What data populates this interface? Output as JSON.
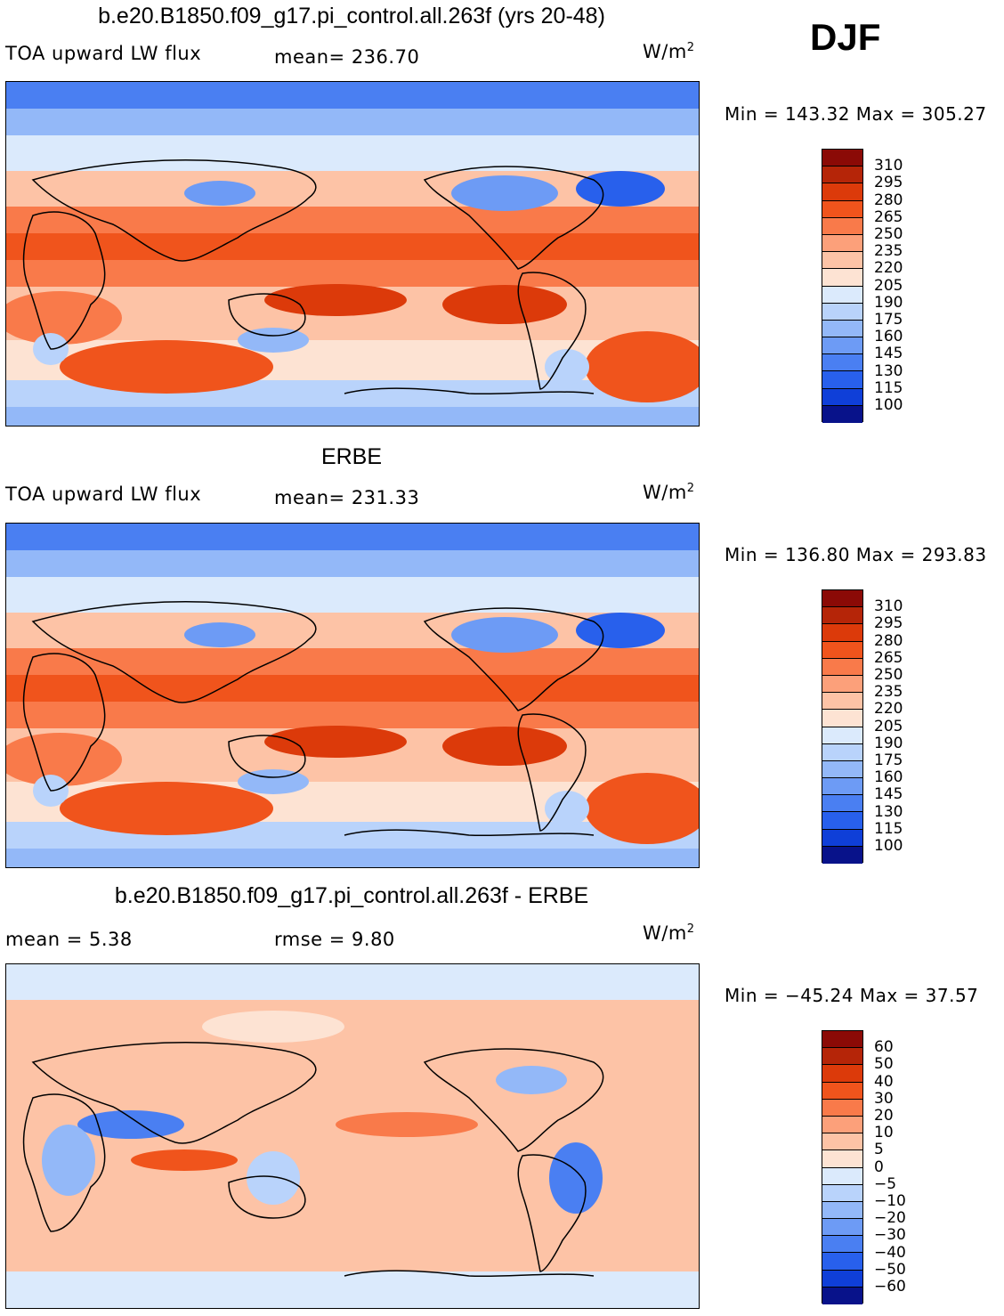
{
  "season": "DJF",
  "panels": [
    {
      "title": "b.e20.B1850.f09_g17.pi_control.all.263f (yrs 20-48)",
      "left_label": "TOA upward LW flux",
      "stat1": "mean=  236.70",
      "stat2": "",
      "units": "W/m",
      "units_sup": "2",
      "minmax": "Min  =  143.32  Max  =  305.27",
      "kind": "abs"
    },
    {
      "title": "ERBE",
      "left_label": "TOA upward LW flux",
      "stat1": "mean=  231.33",
      "stat2": "",
      "units": "W/m",
      "units_sup": "2",
      "minmax": "Min  =  136.80  Max  =  293.83",
      "kind": "abs2"
    },
    {
      "title": "b.e20.B1850.f09_g17.pi_control.all.263f - ERBE",
      "left_label": "mean =     5.38",
      "stat1": "rmse =     9.80",
      "stat2": "",
      "units": "W/m",
      "units_sup": "2",
      "minmax": "Min  =  −45.24  Max  =    37.57",
      "kind": "diff"
    }
  ],
  "colorbar_abs": {
    "labels": [
      "310",
      "295",
      "280",
      "265",
      "250",
      "235",
      "220",
      "205",
      "190",
      "175",
      "160",
      "145",
      "130",
      "115",
      "100"
    ],
    "colors": [
      "#8b0a06",
      "#b52508",
      "#dc3a0a",
      "#f0541c",
      "#f97a4a",
      "#fca07a",
      "#fdc3a6",
      "#fde3d3",
      "#dbeafc",
      "#b9d3fb",
      "#93b8f8",
      "#6d9bf5",
      "#4a7ff2",
      "#2860ec",
      "#0f3fd8",
      "#08128a"
    ]
  },
  "colorbar_diff": {
    "labels": [
      "60",
      "50",
      "40",
      "30",
      "20",
      "10",
      "5",
      "0",
      "−5",
      "−10",
      "−20",
      "−30",
      "−40",
      "−50",
      "−60"
    ],
    "colors": [
      "#8b0a06",
      "#b52508",
      "#dc3a0a",
      "#f0541c",
      "#f97a4a",
      "#fca07a",
      "#fdc3a6",
      "#fde3d3",
      "#dbeafc",
      "#b9d3fb",
      "#93b8f8",
      "#6d9bf5",
      "#4a7ff2",
      "#2860ec",
      "#0f3fd8",
      "#08128a"
    ]
  }
}
